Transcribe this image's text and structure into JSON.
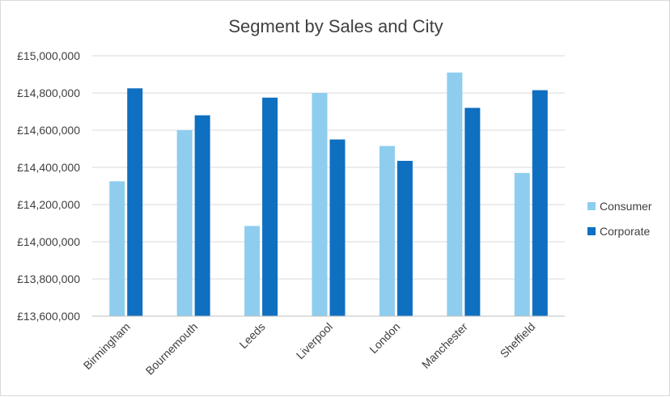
{
  "chart_data": {
    "type": "bar",
    "title": "Segment by Sales and City",
    "xlabel": "",
    "ylabel": "",
    "categories": [
      "Birmingham",
      "Bournemouth",
      "Leeds",
      "Liverpool",
      "London",
      "Manchester",
      "Sheffield"
    ],
    "series": [
      {
        "name": "Consumer",
        "color": "#8ecdee",
        "values": [
          14325000,
          14600000,
          14085000,
          14800000,
          14515000,
          14910000,
          14370000
        ]
      },
      {
        "name": "Corporate",
        "color": "#0f6fc0",
        "values": [
          14825000,
          14680000,
          14775000,
          14550000,
          14435000,
          14720000,
          14815000
        ]
      }
    ],
    "ylim": [
      13600000,
      15000000
    ],
    "yticks": [
      13600000,
      13800000,
      14000000,
      14200000,
      14400000,
      14600000,
      14800000,
      15000000
    ],
    "ytick_labels": [
      "£13,600,000",
      "£13,800,000",
      "£14,000,000",
      "£14,200,000",
      "£14,400,000",
      "£14,600,000",
      "£14,800,000",
      "£15,000,000"
    ],
    "grid": true,
    "legend_position": "right"
  }
}
